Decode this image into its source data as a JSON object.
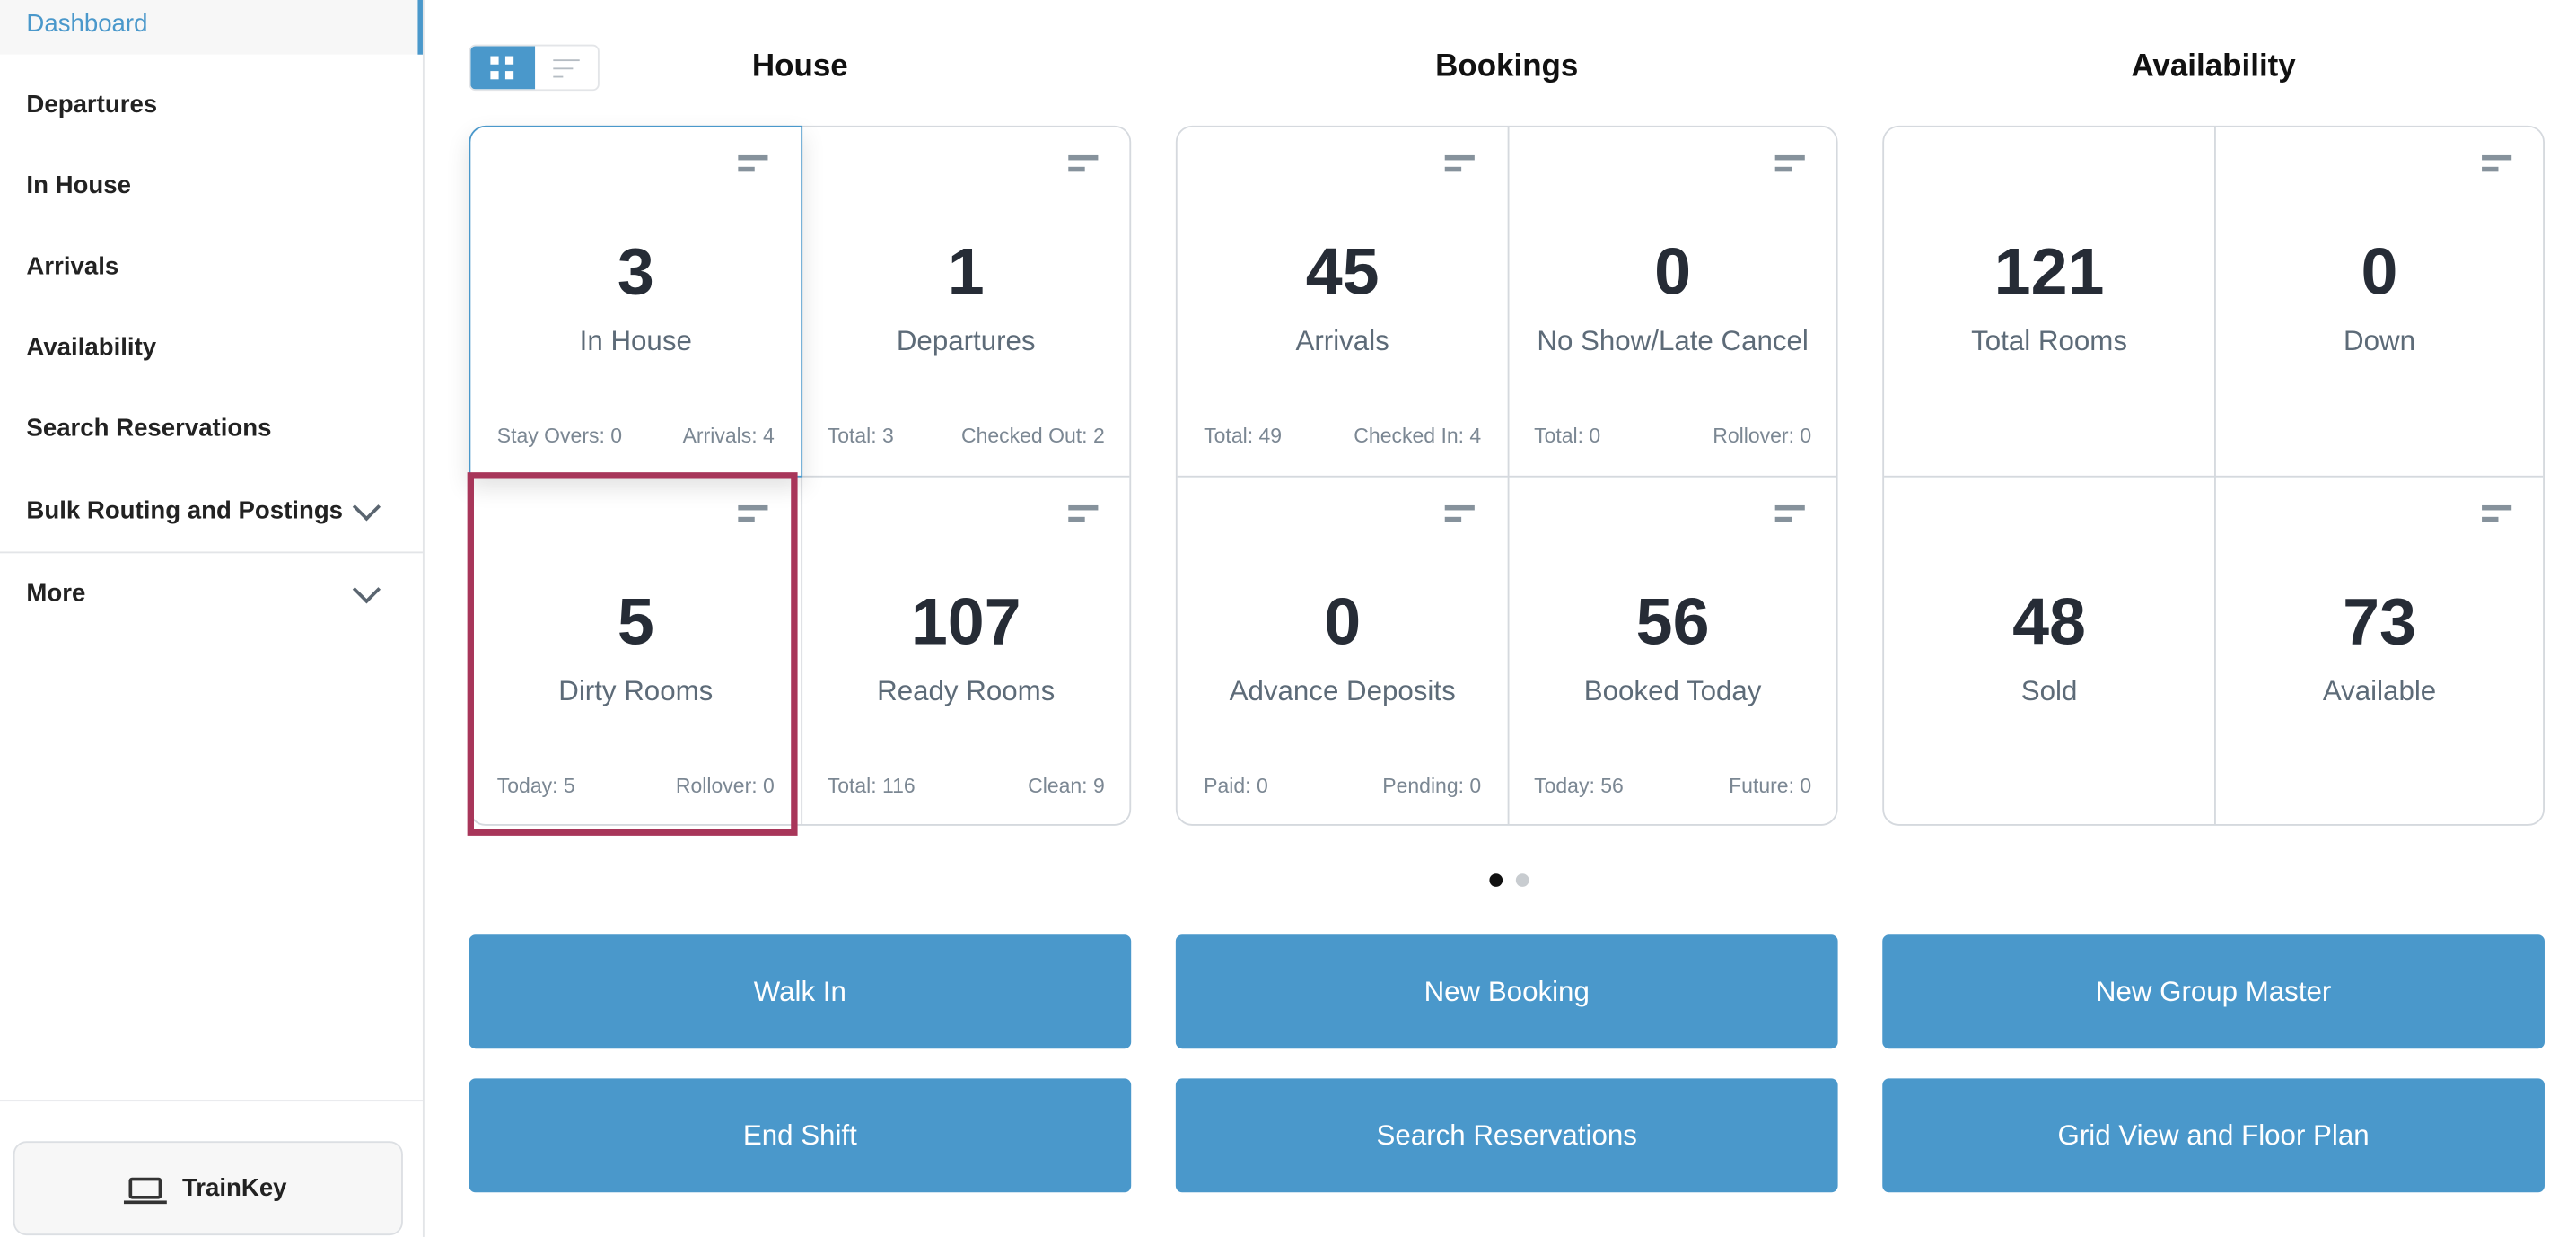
{
  "sidebar": {
    "items": [
      {
        "label": "Dashboard",
        "active": true
      },
      {
        "label": "Departures"
      },
      {
        "label": "In House"
      },
      {
        "label": "Arrivals"
      },
      {
        "label": "Availability"
      },
      {
        "label": "Search Reservations"
      },
      {
        "label": "Bulk Routing and Postings",
        "expandable": true
      },
      {
        "label": "More",
        "expandable": true
      }
    ],
    "trainkey": "TrainKey"
  },
  "view_toggle": {
    "selected": "grid"
  },
  "sections": {
    "house": "House",
    "bookings": "Bookings",
    "availability": "Availability"
  },
  "cards": {
    "in_house": {
      "value": "3",
      "label": "In House",
      "left": "Stay Overs: 0",
      "right": "Arrivals: 4"
    },
    "departures": {
      "value": "1",
      "label": "Departures",
      "left": "Total: 3",
      "right": "Checked Out: 2"
    },
    "dirty_rooms": {
      "value": "5",
      "label": "Dirty Rooms",
      "left": "Today: 5",
      "right": "Rollover: 0"
    },
    "ready_rooms": {
      "value": "107",
      "label": "Ready Rooms",
      "left": "Total: 116",
      "right": "Clean: 9"
    },
    "arrivals": {
      "value": "45",
      "label": "Arrivals",
      "left": "Total: 49",
      "right": "Checked In: 4"
    },
    "no_show": {
      "value": "0",
      "label": "No Show/Late Cancel",
      "left": "Total: 0",
      "right": "Rollover: 0"
    },
    "advance_deposits": {
      "value": "0",
      "label": "Advance Deposits",
      "left": "Paid: 0",
      "right": "Pending: 0"
    },
    "booked_today": {
      "value": "56",
      "label": "Booked Today",
      "left": "Today: 56",
      "right": "Future: 0"
    },
    "total_rooms": {
      "value": "121",
      "label": "Total Rooms"
    },
    "down": {
      "value": "0",
      "label": "Down"
    },
    "sold": {
      "value": "48",
      "label": "Sold"
    },
    "available": {
      "value": "73",
      "label": "Available"
    }
  },
  "pager": {
    "pages": 2,
    "current": 1
  },
  "actions": {
    "walk_in": "Walk In",
    "new_booking": "New Booking",
    "new_group_master": "New Group Master",
    "end_shift": "End Shift",
    "search_reservations": "Search Reservations",
    "grid_view": "Grid View and Floor Plan"
  },
  "colors": {
    "accent": "#4a98cb",
    "highlight": "#a8365a"
  }
}
